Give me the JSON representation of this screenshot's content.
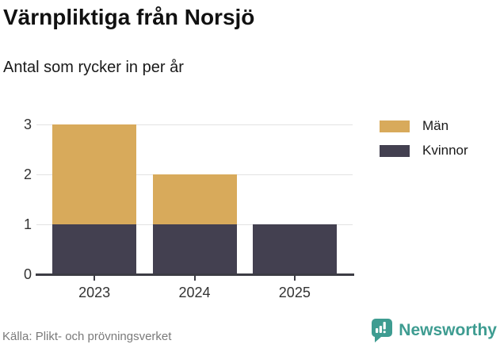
{
  "header": {
    "title": "Värnpliktiga från Norsjö",
    "subtitle": "Antal som rycker in per år"
  },
  "footer": {
    "source": "Källa: Plikt- och prövningsverket",
    "brand": {
      "name": "Newsworthy",
      "color": "#3E9C91",
      "icon": "bar-chart-speech-bubble-icon"
    }
  },
  "chart_data": {
    "type": "bar",
    "stacked": true,
    "categories": [
      "2023",
      "2024",
      "2025"
    ],
    "series": [
      {
        "name": "Män",
        "color": "#D8AA5B",
        "values": [
          2,
          1,
          0
        ]
      },
      {
        "name": "Kvinnor",
        "color": "#434050",
        "values": [
          1,
          1,
          1
        ]
      }
    ],
    "stack_bottom_to_top": [
      "Kvinnor",
      "Män"
    ],
    "title": "Värnpliktiga från Norsjö",
    "subtitle": "Antal som rycker in per år",
    "xlabel": "",
    "ylabel": "",
    "ylim": [
      0,
      3
    ],
    "yticks": [
      0,
      1,
      2,
      3
    ],
    "grid": true,
    "legend_position": "right"
  },
  "style_colors": {
    "grid": "#E2E2E2",
    "axis": "#3C3C44",
    "tick_text": "#333333",
    "source_text": "#7A7A7A"
  }
}
